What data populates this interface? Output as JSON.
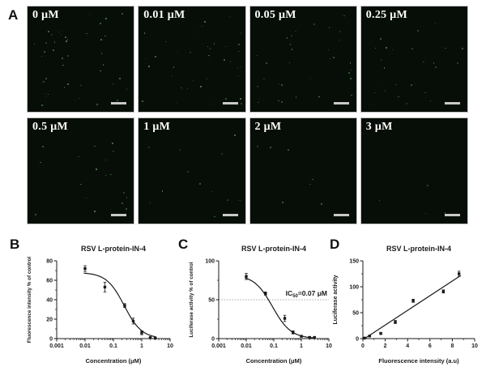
{
  "figure": {
    "panel_a": {
      "label": "A",
      "tiles": [
        {
          "label": "0 μM",
          "dots": 42
        },
        {
          "label": "0.01 μM",
          "dots": 38
        },
        {
          "label": "0.05 μM",
          "dots": 32
        },
        {
          "label": "0.25 μM",
          "dots": 26
        },
        {
          "label": "0.5 μM",
          "dots": 18
        },
        {
          "label": "1 μM",
          "dots": 13
        },
        {
          "label": "2 μM",
          "dots": 8
        },
        {
          "label": "3 μM",
          "dots": 4
        }
      ]
    },
    "panel_letters": {
      "b": "B",
      "c": "C",
      "d": "D"
    }
  },
  "colors": {
    "background": "#ffffff",
    "tile_bg": "#070e07",
    "tile_border": "#c4c4c4",
    "tile_label": "#ffffff",
    "dot": "#5d9b5d",
    "scale_bar": "#c9c9c9",
    "axis": "#1a1a1a",
    "refline": "#aaaaaa"
  },
  "chart_data": [
    {
      "id": "B",
      "type": "scatter",
      "title": "RSV L-protein-IN-4",
      "xlabel": "Concentration (μM)",
      "ylabel": "Fluorescence intensity % of control",
      "xscale": "log",
      "xlim": [
        0.001,
        10
      ],
      "ylim": [
        0,
        80
      ],
      "xticks": [
        0.001,
        0.01,
        0.1,
        1,
        10
      ],
      "yticks": [
        0,
        20,
        40,
        60,
        80
      ],
      "points": [
        {
          "x": 0.01,
          "y": 72,
          "err": 3
        },
        {
          "x": 0.05,
          "y": 53,
          "err": 5
        },
        {
          "x": 0.25,
          "y": 34,
          "err": 2
        },
        {
          "x": 0.5,
          "y": 18,
          "err": 3
        },
        {
          "x": 1,
          "y": 6,
          "err": 2
        },
        {
          "x": 2,
          "y": 1,
          "err": 0.5
        },
        {
          "x": 3,
          "y": 0.5,
          "err": 0.5
        }
      ],
      "fit": {
        "kind": "sigmoid",
        "top": 68,
        "bottom": 0,
        "ic50": 0.24,
        "hill": 1.4,
        "range": [
          0.009,
          3.2
        ]
      }
    },
    {
      "id": "C",
      "type": "scatter",
      "title": "RSV L-protein-IN-4",
      "xlabel": "Concentration (μM)",
      "ylabel": "Luciferase activity % of control",
      "xscale": "log",
      "xlim": [
        0.001,
        10
      ],
      "ylim": [
        0,
        100
      ],
      "xticks": [
        0.001,
        0.01,
        0.1,
        1,
        10
      ],
      "yticks": [
        0,
        50,
        100
      ],
      "points": [
        {
          "x": 0.01,
          "y": 80,
          "err": 4
        },
        {
          "x": 0.05,
          "y": 58,
          "err": 2
        },
        {
          "x": 0.25,
          "y": 26,
          "err": 4
        },
        {
          "x": 0.5,
          "y": 8,
          "err": 2
        },
        {
          "x": 1,
          "y": 3,
          "err": 1
        },
        {
          "x": 2,
          "y": 1.5,
          "err": 0.5
        },
        {
          "x": 3,
          "y": 1.5,
          "err": 0.5
        }
      ],
      "fit": {
        "kind": "sigmoid",
        "top": 82,
        "bottom": 0,
        "ic50": 0.09,
        "hill": 1.3,
        "range": [
          0.009,
          3.2
        ]
      },
      "refline": {
        "y": 50
      },
      "annotation": {
        "prefix": "IC",
        "sub": "50",
        "suffix": "=0.07 μM"
      }
    },
    {
      "id": "D",
      "type": "scatter",
      "title": "RSV L-protein-IN-4",
      "xlabel": "Fluorescence intensity (a.u)",
      "ylabel": "Luciferase activity",
      "xscale": "linear",
      "xlim": [
        0,
        10
      ],
      "ylim": [
        0,
        150
      ],
      "xticks": [
        0,
        2,
        4,
        6,
        8,
        10
      ],
      "yticks": [
        0,
        50,
        100,
        150
      ],
      "points": [
        {
          "x": 0.15,
          "y": 1,
          "err": 1
        },
        {
          "x": 0.6,
          "y": 5,
          "err": 1
        },
        {
          "x": 1.6,
          "y": 10,
          "err": 2
        },
        {
          "x": 2.9,
          "y": 32,
          "err": 3
        },
        {
          "x": 4.5,
          "y": 73,
          "err": 3
        },
        {
          "x": 7.2,
          "y": 91,
          "err": 3
        },
        {
          "x": 8.6,
          "y": 125,
          "err": 5
        }
      ],
      "fit": {
        "kind": "linear",
        "slope": 14.2,
        "intercept": -2.5,
        "range": [
          0.15,
          8.75
        ]
      }
    }
  ]
}
